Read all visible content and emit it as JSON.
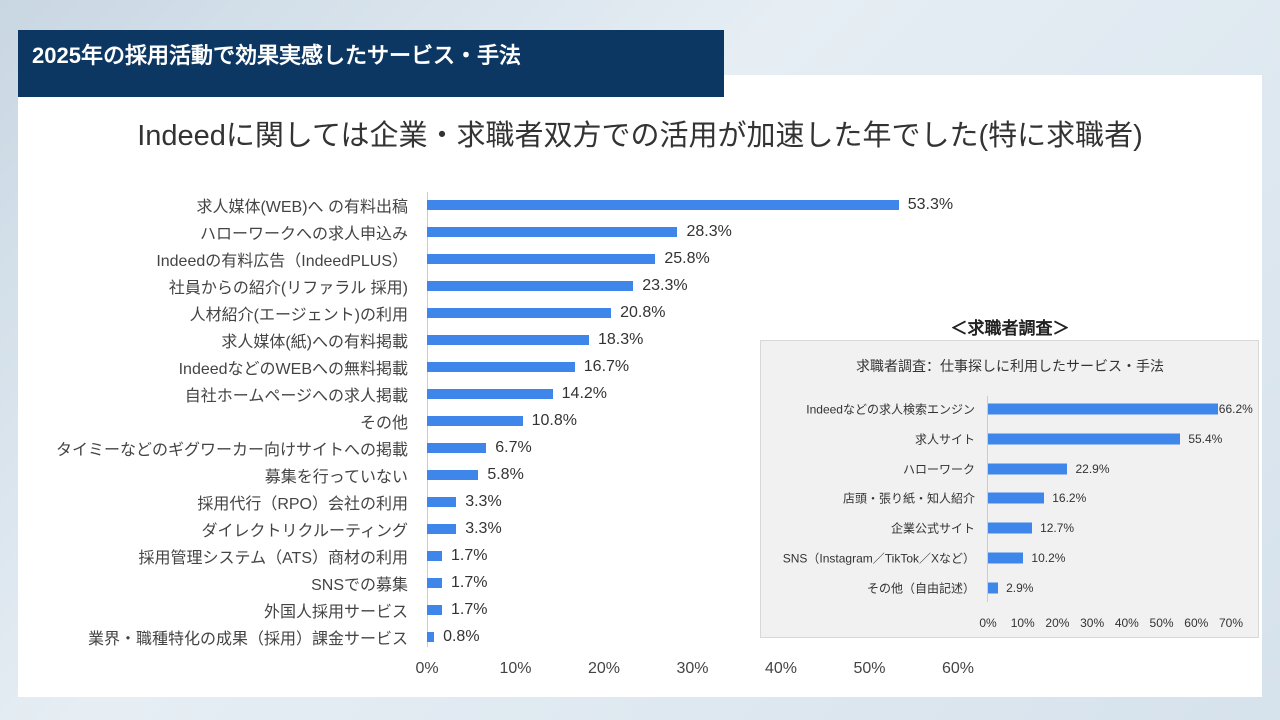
{
  "header": {
    "title": "2025年の採用活動で効果実感したサービス・手法"
  },
  "subtitle": "Indeedに関しては企業・求職者双方での活用が加速した年でした(特に求職者)",
  "chart_data": [
    {
      "type": "bar",
      "orientation": "horizontal",
      "title": "",
      "categories": [
        "求人媒体(WEB)へ の有料出稿",
        "ハローワークへの求人申込み",
        "Indeedの有料広告（IndeedPLUS）",
        "社員からの紹介(リファラル 採用)",
        "人材紹介(エージェント)の利用",
        "求人媒体(紙)への有料掲載",
        "IndeedなどのWEBへの無料掲載",
        "自社ホームページへの求人掲載",
        "その他",
        "タイミーなどのギグワーカー向けサイトへの掲載",
        "募集を行っていない",
        "採用代行（RPO）会社の利用",
        "ダイレクトリクルーティング",
        "採用管理システム（ATS）商材の利用",
        "SNSでの募集",
        "外国人採用サービス",
        "業界・職種特化の成果（採用）課金サービス"
      ],
      "values": [
        53.3,
        28.3,
        25.8,
        23.3,
        20.8,
        18.3,
        16.7,
        14.2,
        10.8,
        6.7,
        5.8,
        3.3,
        3.3,
        1.7,
        1.7,
        1.7,
        0.8
      ],
      "xlim": [
        0,
        60
      ],
      "ticks": [
        "0%",
        "10%",
        "20%",
        "30%",
        "40%",
        "50%",
        "60%"
      ],
      "color": "#3e86ea"
    },
    {
      "type": "bar",
      "orientation": "horizontal",
      "heading": "＜求職者調査＞",
      "title": "求職者調査：仕事探しに利用したサービス・手法",
      "categories": [
        "Indeedなどの求人検索エンジン",
        "求人サイト",
        "ハローワーク",
        "店頭・張り紙・知人紹介",
        "企業公式サイト",
        "SNS（Instagram／TikTok／Xなど）",
        "その他（自由記述）"
      ],
      "values": [
        66.2,
        55.4,
        22.9,
        16.2,
        12.7,
        10.2,
        2.9
      ],
      "xlim": [
        0,
        70
      ],
      "ticks": [
        "0%",
        "10%",
        "20%",
        "30%",
        "40%",
        "50%",
        "60%",
        "70%"
      ],
      "color": "#3e86ea"
    }
  ]
}
